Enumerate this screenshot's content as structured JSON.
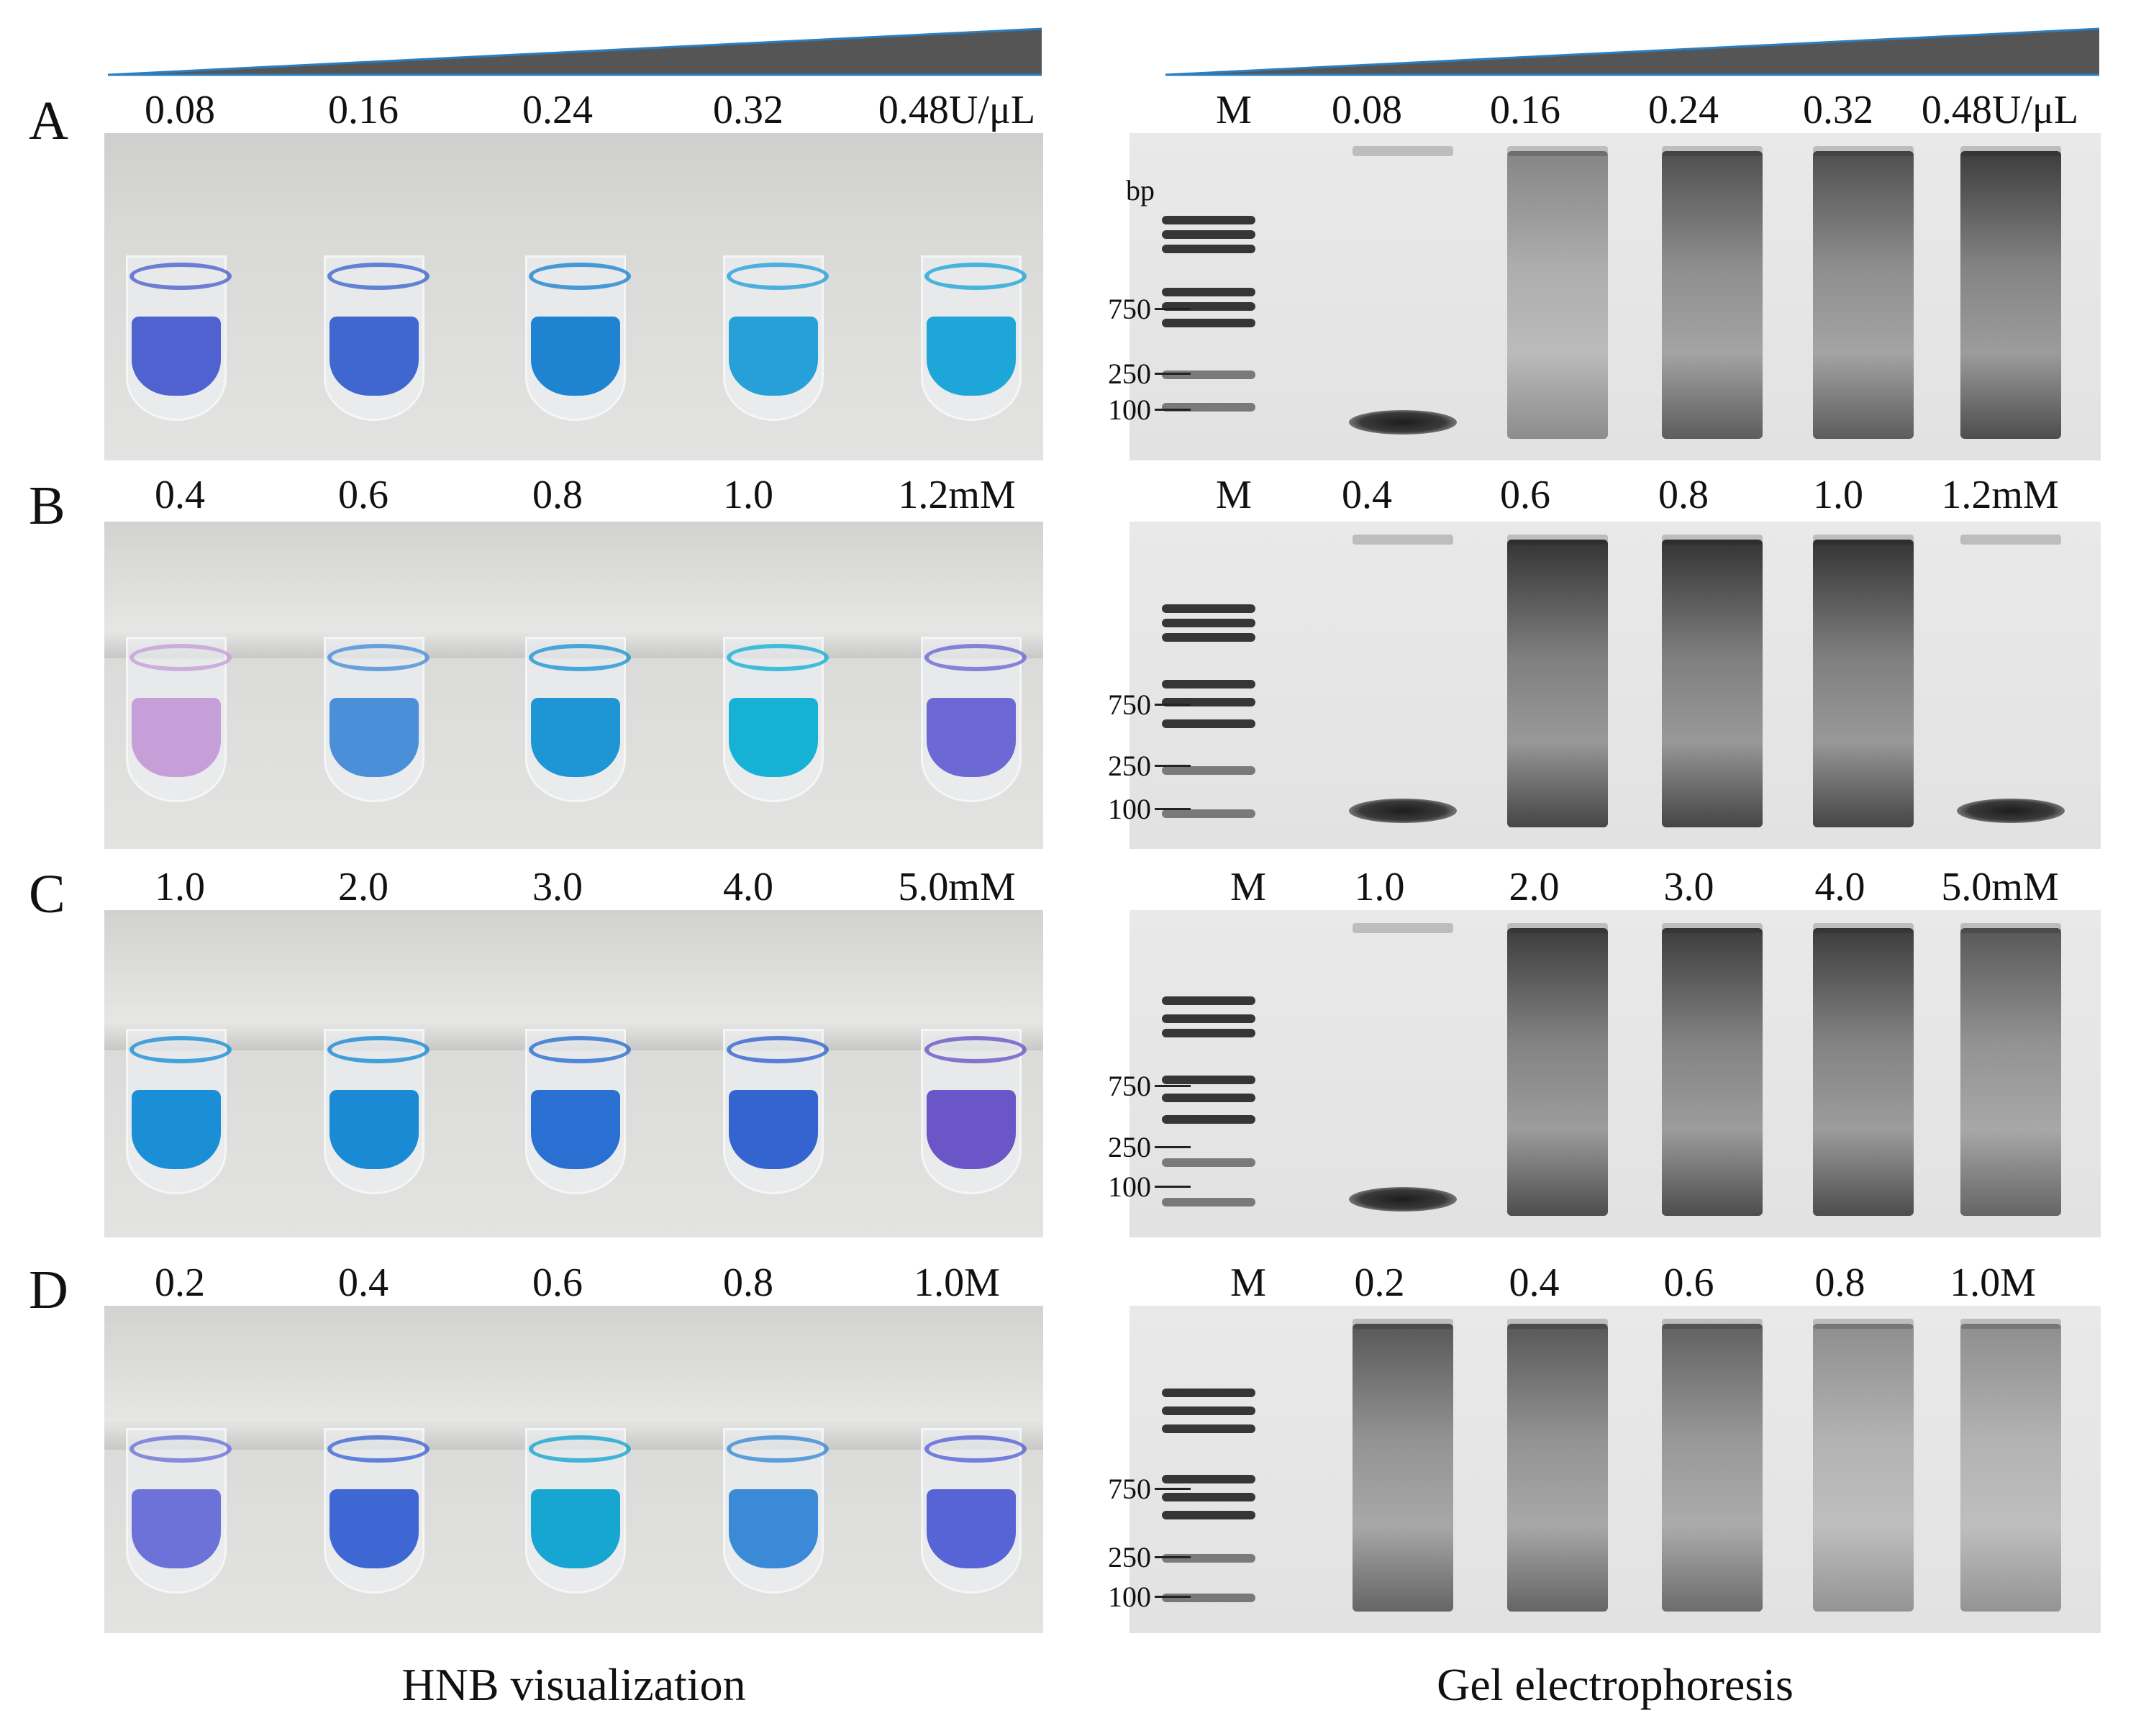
{
  "panels": [
    {
      "letter": "A",
      "left_concs": [
        "0.08",
        "0.16",
        "0.24",
        "0.32",
        "0.48U/μL"
      ],
      "right_concs": [
        "M",
        "0.08",
        "0.16",
        "0.24",
        "0.32",
        "0.48U/μL"
      ],
      "marker_labels": [
        "bp",
        "750",
        "250",
        "100"
      ],
      "tube_colors": [
        "#4f62d0",
        "#3f67cf",
        "#1e84d2",
        "#27a0da",
        "#1fa6d8"
      ]
    },
    {
      "letter": "B",
      "left_concs": [
        "0.4",
        "0.6",
        "0.8",
        "1.0",
        "1.2mM"
      ],
      "right_concs": [
        "M",
        "0.4",
        "0.6",
        "0.8",
        "1.0",
        "1.2mM"
      ],
      "marker_labels": [
        "750",
        "250",
        "100"
      ],
      "tube_colors": [
        "#c79fd8",
        "#4a8fd8",
        "#1e96d6",
        "#16b2d6",
        "#6c69d4"
      ]
    },
    {
      "letter": "C",
      "left_concs": [
        "1.0",
        "2.0",
        "3.0",
        "4.0",
        "5.0mM"
      ],
      "right_concs": [
        "M",
        "1.0",
        "2.0",
        "3.0",
        "4.0",
        "5.0mM"
      ],
      "marker_labels": [
        "750",
        "250",
        "100"
      ],
      "tube_colors": [
        "#1b8fd6",
        "#1a8ad4",
        "#2a6fd2",
        "#3464d0",
        "#6a56c6"
      ]
    },
    {
      "letter": "D",
      "left_concs": [
        "0.2",
        "0.4",
        "0.6",
        "0.8",
        "1.0M"
      ],
      "right_concs": [
        "M",
        "0.2",
        "0.4",
        "0.6",
        "0.8",
        "1.0M"
      ],
      "marker_labels": [
        "750",
        "250",
        "100"
      ],
      "tube_colors": [
        "#6d72d8",
        "#3f67d4",
        "#17a5d2",
        "#3b8ad8",
        "#5664d6"
      ]
    }
  ],
  "captions": {
    "left": "HNB visualization",
    "right": "Gel electrophoresis"
  },
  "colors": {
    "ramp_fill": "#555555",
    "ramp_edge": "#2b7fc0"
  }
}
